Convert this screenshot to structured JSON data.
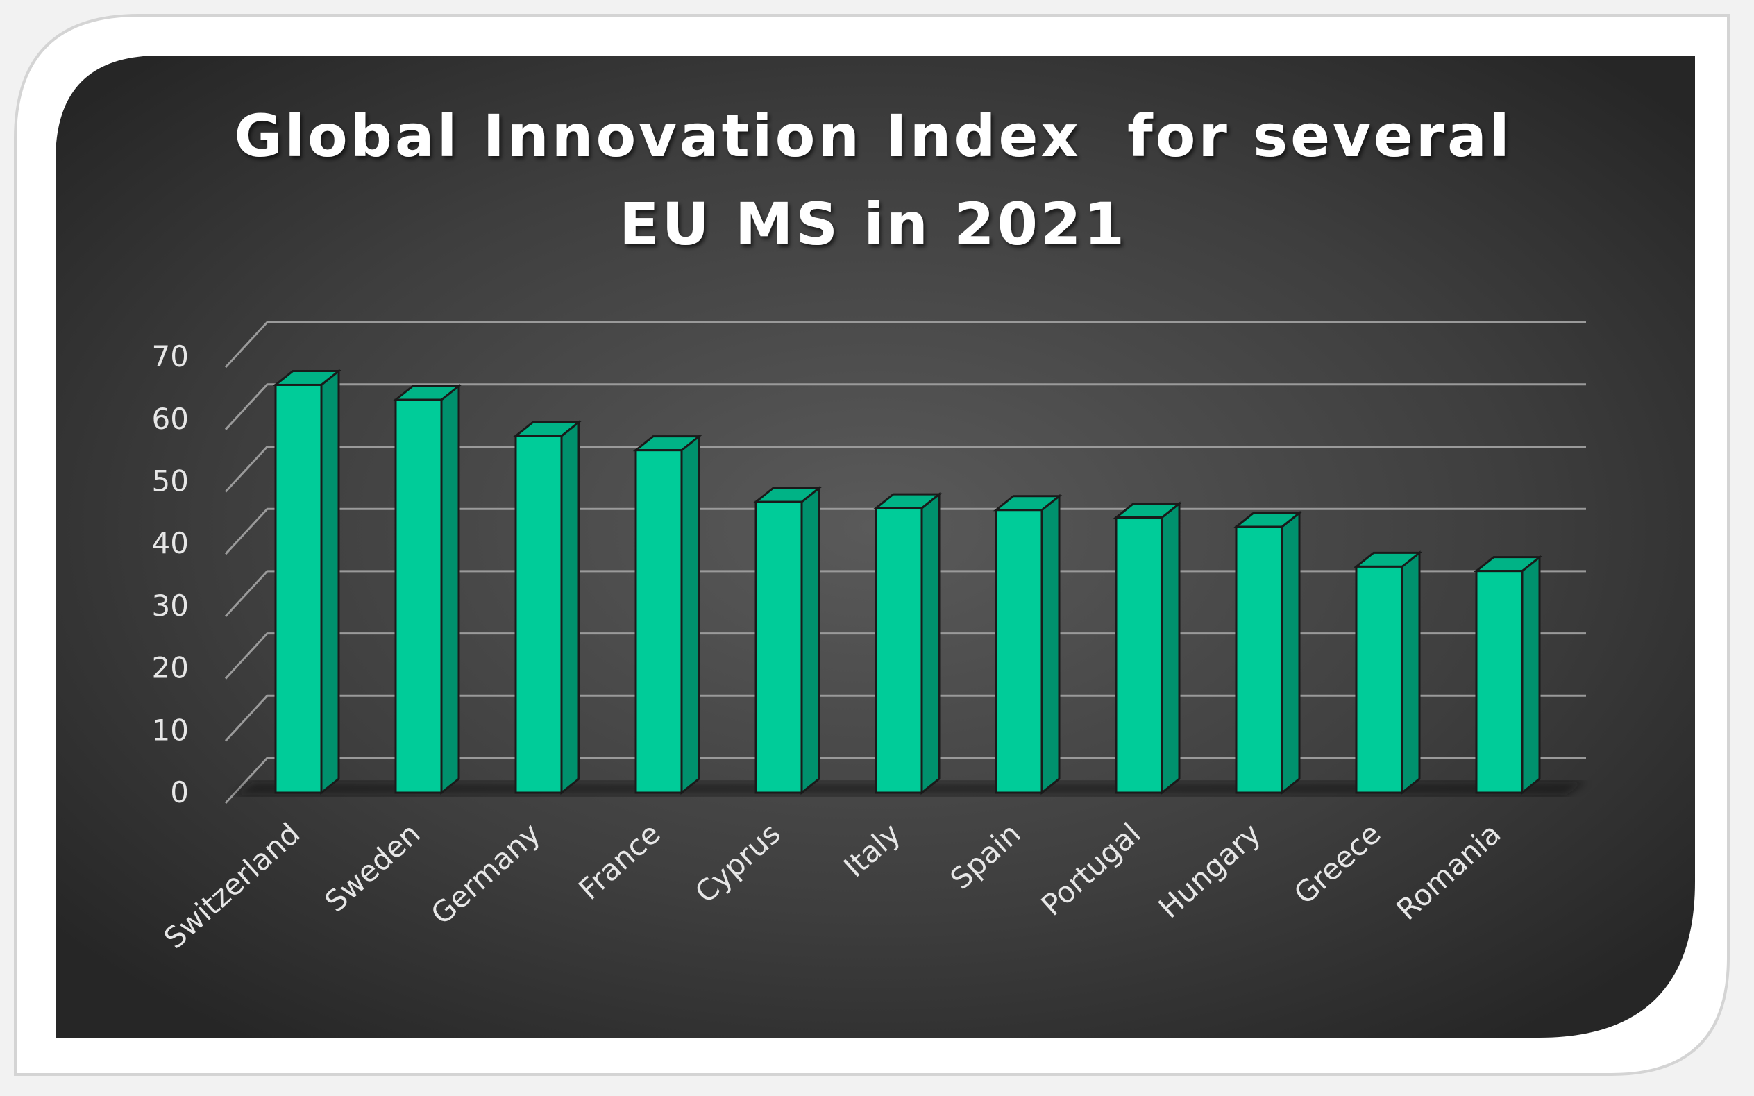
{
  "chart_data": {
    "type": "bar",
    "title_line1": "Global Innovation Index  for several",
    "title_line2": "EU MS in 2021",
    "xlabel": "",
    "ylabel": "",
    "ylim": [
      0,
      70
    ],
    "yticks": [
      "0",
      "10",
      "20",
      "30",
      "40",
      "50",
      "60",
      "70"
    ],
    "grid": true,
    "legend": "none",
    "categories": [
      "Switzerland",
      "Sweden",
      "Germany",
      "France",
      "Cyprus",
      "Italy",
      "Spain",
      "Portugal",
      "Hungary",
      "Greece",
      "Romania"
    ],
    "series": [
      {
        "name": "Global Innovation Index",
        "values": [
          65.5,
          63.1,
          57.3,
          55.0,
          46.7,
          45.7,
          45.4,
          44.2,
          42.7,
          36.3,
          35.6
        ]
      }
    ],
    "colors": {
      "bar_front": "#00cc99",
      "bar_side": "#00916d",
      "bar_top": "#00b386",
      "bar_outline": "#1a1a1a",
      "grid": "#9a9a9a",
      "text": "#e6e6e6"
    }
  }
}
